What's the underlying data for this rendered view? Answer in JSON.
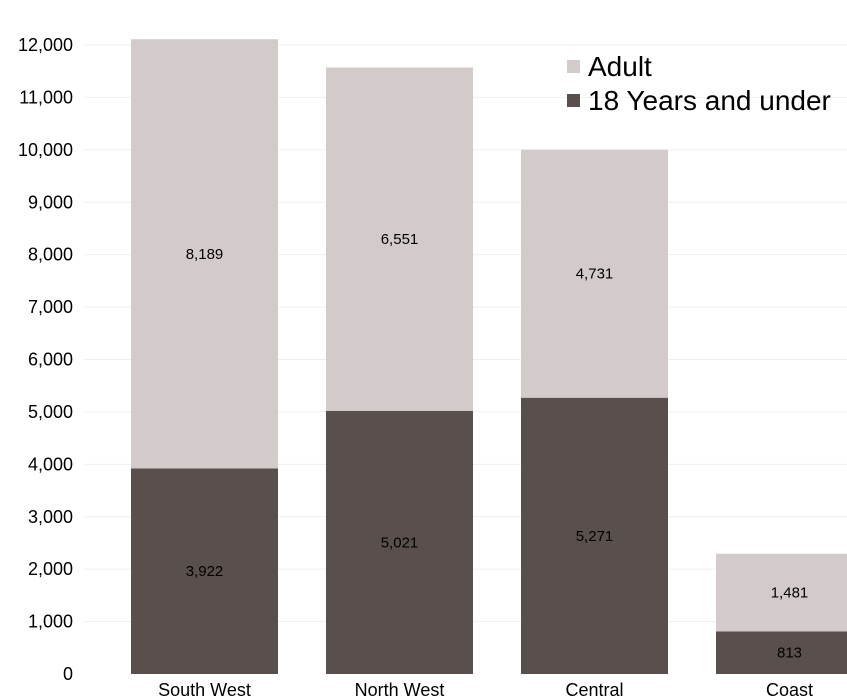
{
  "chart_data": {
    "type": "bar",
    "stacked": true,
    "categories": [
      "South West",
      "North West",
      "Central",
      "Coast"
    ],
    "series": [
      {
        "name": "18 Years and under",
        "values": [
          3922,
          5021,
          5271,
          813
        ],
        "labels": [
          "3,922",
          "5,021",
          "5,271",
          "813"
        ],
        "color": "#594f4d"
      },
      {
        "name": "Adult",
        "values": [
          8189,
          6551,
          4731,
          1481
        ],
        "labels": [
          "8,189",
          "6,551",
          "4,731",
          "1,481"
        ],
        "color": "#d3cbc9"
      }
    ],
    "ylim": [
      0,
      12000
    ],
    "yticks": [
      0,
      1000,
      2000,
      3000,
      4000,
      5000,
      6000,
      7000,
      8000,
      9000,
      10000,
      11000,
      12000
    ],
    "ytick_labels": [
      "0",
      "1,000",
      "2,000",
      "3,000",
      "4,000",
      "5,000",
      "6,000",
      "7,000",
      "8,000",
      "9,000",
      "10,000",
      "11,000",
      "12,000"
    ],
    "legend": {
      "position": "top-right",
      "entries": [
        {
          "label": "Adult",
          "color": "#d3cbc9"
        },
        {
          "label": "18 Years and under",
          "color": "#594f4d"
        }
      ]
    },
    "grid": true,
    "xlabel": "",
    "ylabel": "",
    "title": ""
  }
}
